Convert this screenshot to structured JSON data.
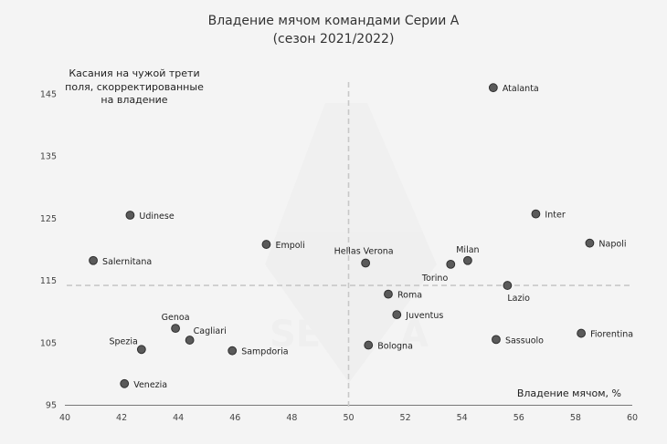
{
  "chart_data": {
    "type": "scatter",
    "title": [
      "Владение мячом командами Серии А",
      "(сезон 2021/2022)"
    ],
    "xlabel": "Владение мячом, %",
    "ylabel": [
      "Касания на чужой трети",
      "поля, скорректированные",
      "на владение"
    ],
    "watermark": "SERIE A",
    "xlim": [
      40,
      60
    ],
    "ylim": [
      95,
      150
    ],
    "xticks": [
      40,
      42,
      44,
      46,
      48,
      50,
      52,
      54,
      56,
      58,
      60
    ],
    "yticks": [
      95,
      105,
      115,
      125,
      135,
      145
    ],
    "reference_lines": {
      "x": 50,
      "y": 114.2
    },
    "points": [
      {
        "team": "Atalanta",
        "x": 55.1,
        "y": 146.0,
        "pos": "right"
      },
      {
        "team": "Inter",
        "x": 56.6,
        "y": 125.7,
        "pos": "right"
      },
      {
        "team": "Napoli",
        "x": 58.5,
        "y": 121.0,
        "pos": "right"
      },
      {
        "team": "Udinese",
        "x": 42.3,
        "y": 125.5,
        "pos": "right"
      },
      {
        "team": "Empoli",
        "x": 47.1,
        "y": 120.8,
        "pos": "right"
      },
      {
        "team": "Salernitana",
        "x": 41.0,
        "y": 118.2,
        "pos": "right"
      },
      {
        "team": "Hellas Verona",
        "x": 50.6,
        "y": 117.8,
        "pos": "upper"
      },
      {
        "team": "Milan",
        "x": 54.2,
        "y": 118.2,
        "pos": "above"
      },
      {
        "team": "Torino",
        "x": 53.6,
        "y": 117.6,
        "pos": "below-left"
      },
      {
        "team": "Lazio",
        "x": 55.6,
        "y": 114.2,
        "pos": "below-right"
      },
      {
        "team": "Roma",
        "x": 51.4,
        "y": 112.8,
        "pos": "right"
      },
      {
        "team": "Juventus",
        "x": 51.7,
        "y": 109.5,
        "pos": "right"
      },
      {
        "team": "Genoa",
        "x": 43.9,
        "y": 107.3,
        "pos": "above"
      },
      {
        "team": "Cagliari",
        "x": 44.4,
        "y": 105.4,
        "pos": "upper-right"
      },
      {
        "team": "Spezia",
        "x": 42.7,
        "y": 103.9,
        "pos": "upper-left"
      },
      {
        "team": "Sampdoria",
        "x": 45.9,
        "y": 103.7,
        "pos": "right"
      },
      {
        "team": "Bologna",
        "x": 50.7,
        "y": 104.6,
        "pos": "right"
      },
      {
        "team": "Sassuolo",
        "x": 55.2,
        "y": 105.5,
        "pos": "right"
      },
      {
        "team": "Fiorentina",
        "x": 58.2,
        "y": 106.5,
        "pos": "right"
      },
      {
        "team": "Venezia",
        "x": 42.1,
        "y": 98.4,
        "pos": "right"
      }
    ]
  }
}
